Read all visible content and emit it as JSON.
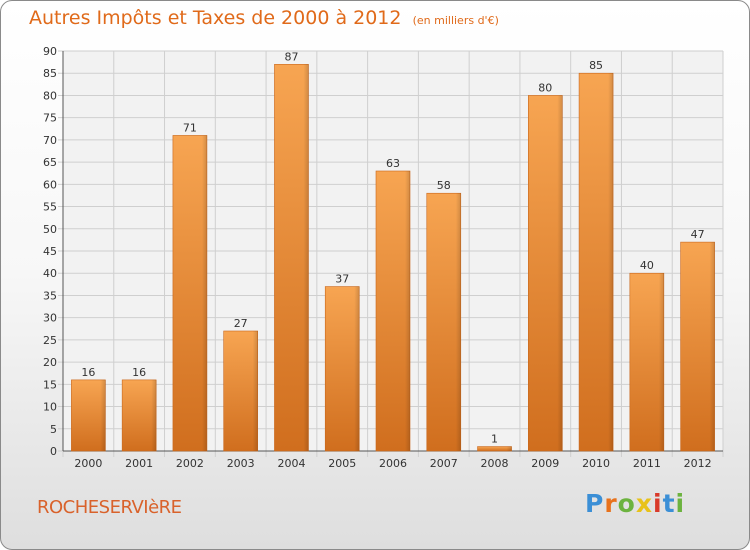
{
  "chart_data": {
    "type": "bar",
    "title": "Autres Impôts et Taxes de 2000 à 2012",
    "subtitle": "(en milliers d'€)",
    "categories": [
      "2000",
      "2001",
      "2002",
      "2003",
      "2004",
      "2005",
      "2006",
      "2007",
      "2008",
      "2009",
      "2010",
      "2011",
      "2012"
    ],
    "values": [
      16,
      16,
      71,
      27,
      87,
      37,
      63,
      58,
      1,
      80,
      85,
      40,
      47
    ],
    "ylim": [
      0,
      90
    ],
    "ytick_step": 5,
    "grid": true,
    "bar_color": "#f0923a"
  },
  "footer": {
    "town": "ROCHESERVIèRE",
    "logo_letters": [
      "P",
      "r",
      "o",
      "x",
      "i",
      "t",
      "i"
    ],
    "logo_colors": [
      "#3b8fd6",
      "#e8721c",
      "#6cb33f",
      "#e8c21a",
      "#d93a2b",
      "#3b8fd6",
      "#6cb33f"
    ]
  }
}
